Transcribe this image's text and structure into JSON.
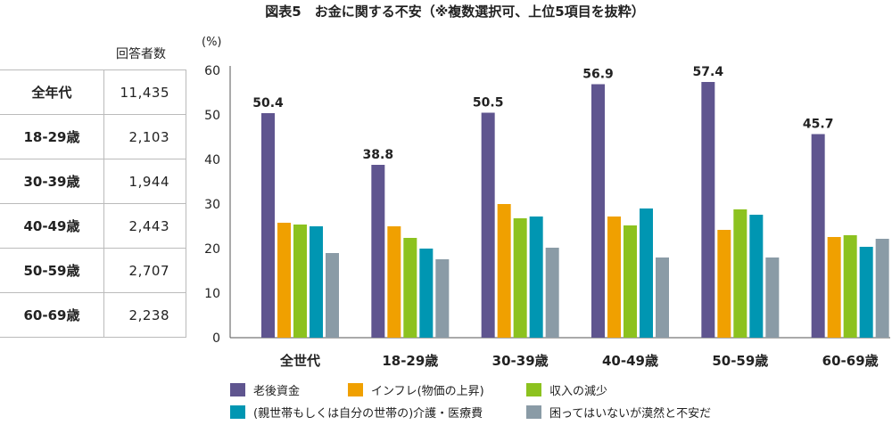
{
  "title": "図表5　お金に関する不安（※複数選択可、上位5項目を抜粋）",
  "table": {
    "header": "回答者数",
    "rows": [
      {
        "label": "全年代",
        "value": "11,435"
      },
      {
        "label": "18-29歳",
        "value": "2,103"
      },
      {
        "label": "30-39歳",
        "value": "1,944"
      },
      {
        "label": "40-49歳",
        "value": "2,443"
      },
      {
        "label": "50-59歳",
        "value": "2,707"
      },
      {
        "label": "60-69歳",
        "value": "2,238"
      }
    ]
  },
  "chart_data": {
    "type": "bar",
    "ylabel": "(%)",
    "ylim": [
      0,
      60
    ],
    "yticks": [
      0,
      10,
      20,
      30,
      40,
      50,
      60
    ],
    "categories": [
      "全世代",
      "18-29歳",
      "30-39歳",
      "40-49歳",
      "50-59歳",
      "60-69歳"
    ],
    "legend_position": "bottom",
    "series": [
      {
        "name": "老後資金",
        "color": "#5f558f",
        "values": [
          50.4,
          38.8,
          50.5,
          56.9,
          57.4,
          45.7
        ],
        "labeled": true
      },
      {
        "name": "インフレ(物価の上昇)",
        "color": "#f0a000",
        "values": [
          25.8,
          25.0,
          30.0,
          27.2,
          24.2,
          22.6
        ]
      },
      {
        "name": "収入の減少",
        "color": "#8cc21f",
        "values": [
          25.4,
          22.4,
          26.8,
          25.2,
          28.8,
          23.0
        ]
      },
      {
        "name": "(親世帯もしくは自分の世帯の)介護・医療費",
        "color": "#0096b2",
        "values": [
          25.0,
          20.0,
          27.2,
          29.0,
          27.6,
          20.4
        ]
      },
      {
        "name": "困ってはいないが漠然と不安だ",
        "color": "#8a9ba6",
        "values": [
          19.0,
          17.6,
          20.2,
          18.0,
          18.0,
          22.2
        ]
      }
    ]
  }
}
